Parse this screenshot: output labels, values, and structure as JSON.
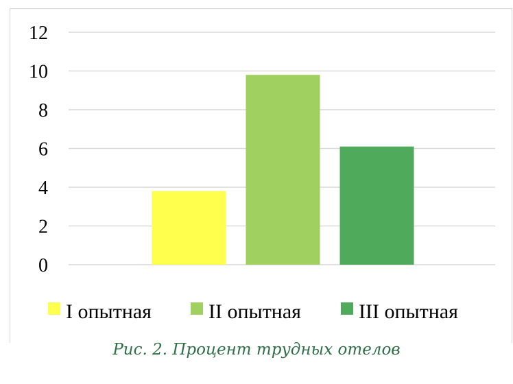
{
  "caption": "Рис. 2. Процент трудных отелов",
  "chart_data": {
    "type": "bar",
    "title": "",
    "xlabel": "",
    "ylabel": "",
    "ylim": [
      0,
      12
    ],
    "yticks": [
      0,
      2,
      4,
      6,
      8,
      10,
      12
    ],
    "grid": true,
    "legend_position": "bottom",
    "series": [
      {
        "name": "I опытная",
        "value": 3.8,
        "color": "#ffff4d"
      },
      {
        "name": "II опытная",
        "value": 9.8,
        "color": "#a0d060"
      },
      {
        "name": "III опытная",
        "value": 6.1,
        "color": "#4faa5c"
      }
    ]
  }
}
